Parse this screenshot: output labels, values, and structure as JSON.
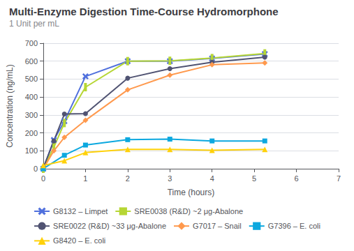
{
  "chart_data": {
    "type": "line",
    "title": "Multi-Enzyme Digestion Time-Course Hydromorphone",
    "subtitle": "1 Unit per mL",
    "xlabel": "Time (hours)",
    "ylabel": "Concentration (ng/mL)",
    "xlim": [
      0,
      7
    ],
    "xticks": [
      0,
      1,
      2,
      3,
      4,
      5,
      6,
      7
    ],
    "ylim": [
      0,
      700
    ],
    "yticks": [
      0,
      100,
      200,
      300,
      400,
      500,
      600,
      700
    ],
    "grid": true,
    "legend": "bottom",
    "series": [
      {
        "name": "G8132 – Limpet",
        "marker": "x",
        "x": [
          0,
          0.25,
          0.5,
          1.0,
          2.0,
          3.0,
          4.0,
          5.25
        ],
        "values": [
          0,
          160,
          265,
          515,
          600,
          600,
          615,
          640
        ]
      },
      {
        "name": "SRE0038 (R&D) ~2 μg-Abalone",
        "marker": "vline",
        "x": [
          0,
          0.25,
          0.5,
          1.0,
          2.0,
          3.0,
          4.0,
          5.25
        ],
        "values": [
          0,
          120,
          255,
          455,
          600,
          602,
          617,
          643
        ]
      },
      {
        "name": "SRE0022 (R&D) ~33 μg-Abalone",
        "marker": "circle",
        "x": [
          0,
          0.25,
          0.5,
          1.0,
          2.0,
          3.0,
          4.0,
          5.25
        ],
        "values": [
          5,
          155,
          305,
          307,
          505,
          558,
          594,
          622
        ]
      },
      {
        "name": "G7017 – Snail",
        "marker": "diamond",
        "x": [
          0,
          0.25,
          0.5,
          1.0,
          2.0,
          3.0,
          4.0,
          5.25
        ],
        "values": [
          0,
          100,
          175,
          270,
          440,
          522,
          580,
          590
        ]
      },
      {
        "name": "G7396 – E. coli",
        "marker": "square",
        "x": [
          0,
          0.5,
          1.0,
          2.0,
          3.0,
          4.0,
          5.25
        ],
        "values": [
          0,
          75,
          132,
          162,
          165,
          155,
          155
        ]
      },
      {
        "name": "G8420 – E. coli",
        "marker": "triangle",
        "x": [
          0,
          0.5,
          1.0,
          2.0,
          3.0,
          4.0,
          5.25
        ],
        "values": [
          18,
          45,
          90,
          108,
          108,
          103,
          108
        ]
      }
    ]
  }
}
